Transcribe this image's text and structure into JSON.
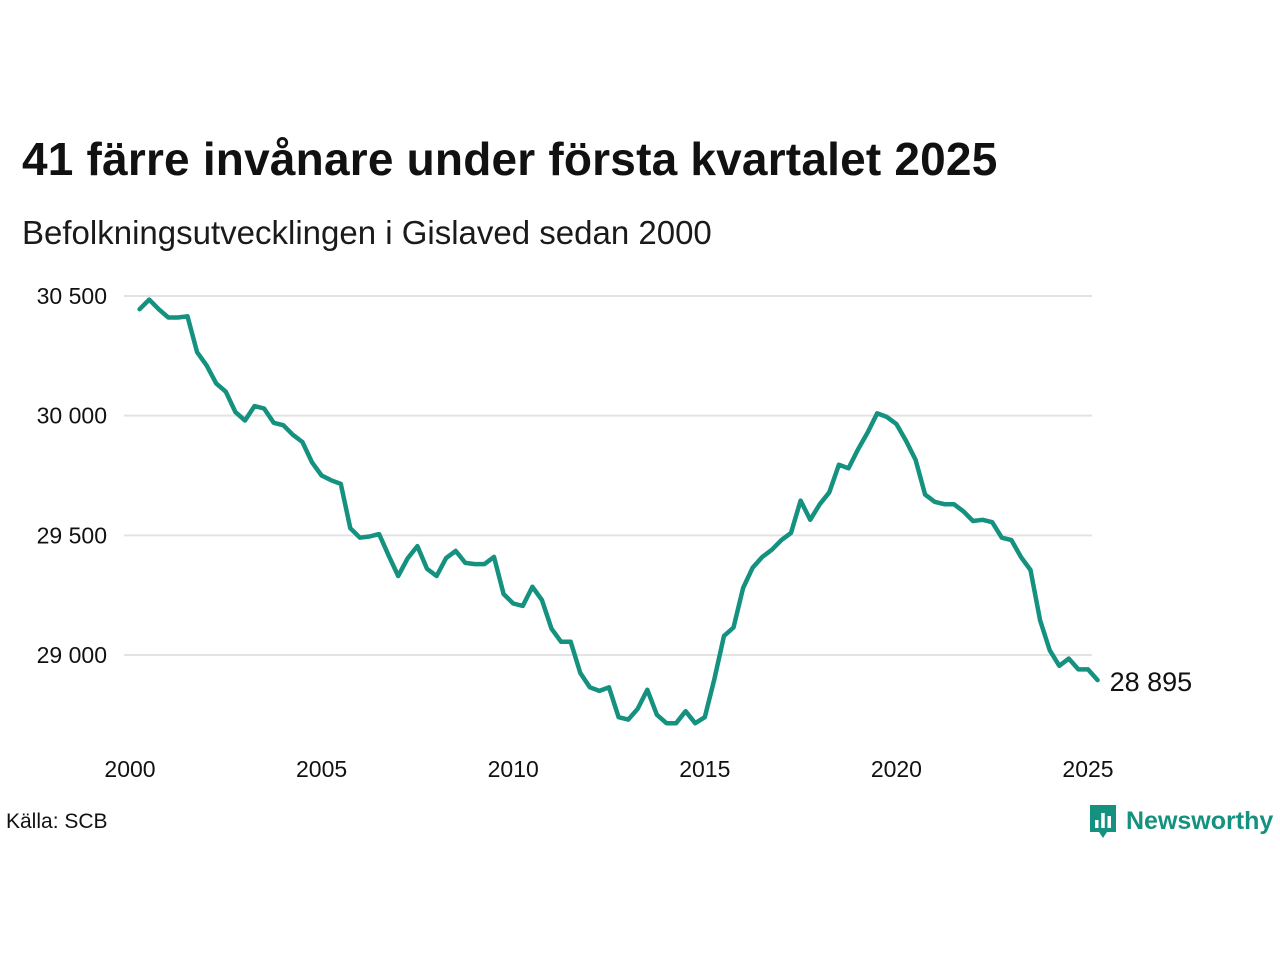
{
  "title": "41 färre invånare under första kvartalet 2025",
  "subtitle": "Befolkningsutvecklingen i Gislaved sedan 2000",
  "source": "Källa: SCB",
  "brand": {
    "name": "Newsworthy",
    "logo_icon": "bar-chart-speech-bubble-icon"
  },
  "colors": {
    "line": "#14917f",
    "brand": "#14917f",
    "grid": "#e3e3e3"
  },
  "chart_data": {
    "type": "line",
    "title": "41 färre invånare under första kvartalet 2025",
    "subtitle": "Befolkningsutvecklingen i Gislaved sedan 2000",
    "xlabel": "",
    "ylabel": "",
    "xlim": [
      2000,
      2025
    ],
    "ylim": [
      28700,
      30550
    ],
    "x_ticks": [
      2000,
      2005,
      2010,
      2015,
      2020,
      2025
    ],
    "x_tick_labels": [
      "2000",
      "2005",
      "2010",
      "2015",
      "2020",
      "2025"
    ],
    "y_ticks": [
      29000,
      29500,
      30000,
      30500
    ],
    "y_tick_labels": [
      "29 000",
      "29 500",
      "30 000",
      "30 500"
    ],
    "grid": "horizontal",
    "legend": "none",
    "end_label": "28 895",
    "series": [
      {
        "x": [
          2000.25,
          2000.5,
          2000.75,
          2001,
          2001.25,
          2001.5,
          2001.75,
          2002,
          2002.25,
          2002.5,
          2002.75,
          2003,
          2003.25,
          2003.5,
          2003.75,
          2004,
          2004.25,
          2004.5,
          2004.75,
          2005,
          2005.25,
          2005.5,
          2005.75,
          2006,
          2006.25,
          2006.5,
          2006.75,
          2007,
          2007.25,
          2007.5,
          2007.75,
          2008,
          2008.25,
          2008.5,
          2008.75,
          2009,
          2009.25,
          2009.5,
          2009.75,
          2010,
          2010.25,
          2010.5,
          2010.75,
          2011,
          2011.25,
          2011.5,
          2011.75,
          2012,
          2012.25,
          2012.5,
          2012.75,
          2013,
          2013.25,
          2013.5,
          2013.75,
          2014,
          2014.25,
          2014.5,
          2014.75,
          2015,
          2015.25,
          2015.5,
          2015.75,
          2016,
          2016.25,
          2016.5,
          2016.75,
          2017,
          2017.25,
          2017.5,
          2017.75,
          2018,
          2018.25,
          2018.5,
          2018.75,
          2019,
          2019.25,
          2019.5,
          2019.75,
          2020,
          2020.25,
          2020.5,
          2020.75,
          2021,
          2021.25,
          2021.5,
          2021.75,
          2022,
          2022.25,
          2022.5,
          2022.75,
          2023,
          2023.25,
          2023.5,
          2023.75,
          2024,
          2024.25,
          2024.5,
          2024.75,
          2025,
          2025.25
        ],
        "values": [
          30445,
          30485,
          30445,
          30410,
          30410,
          30415,
          30265,
          30210,
          30135,
          30100,
          30015,
          29980,
          30040,
          30030,
          29970,
          29960,
          29920,
          29890,
          29805,
          29750,
          29730,
          29715,
          29530,
          29490,
          29495,
          29505,
          29415,
          29330,
          29405,
          29455,
          29360,
          29330,
          29405,
          29435,
          29385,
          29380,
          29380,
          29410,
          29255,
          29215,
          29205,
          29285,
          29230,
          29110,
          29055,
          29055,
          28925,
          28865,
          28850,
          28865,
          28740,
          28730,
          28775,
          28855,
          28750,
          28715,
          28715,
          28765,
          28715,
          28740,
          28900,
          29080,
          29115,
          29280,
          29365,
          29410,
          29440,
          29480,
          29510,
          29645,
          29565,
          29630,
          29680,
          29795,
          29780,
          29860,
          29930,
          30010,
          29995,
          29965,
          29895,
          29815,
          29670,
          29640,
          29630,
          29630,
          29600,
          29560,
          29565,
          29555,
          29490,
          29480,
          29410,
          29355,
          29145,
          29020,
          28955,
          28985,
          28940,
          28940,
          28895
        ]
      }
    ]
  }
}
